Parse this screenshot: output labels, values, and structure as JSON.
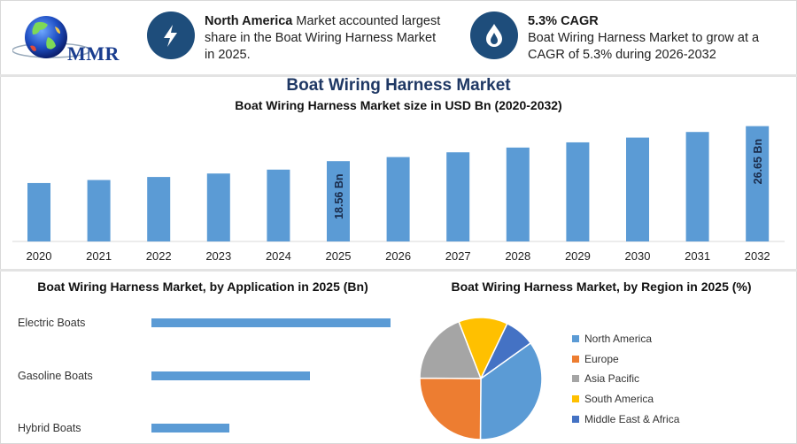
{
  "logo": {
    "text": "MMR"
  },
  "header": {
    "info1": {
      "bold": "North America",
      "text": " Market accounted largest share in the Boat Wiring Harness Market in 2025.",
      "icon": "lightning-bolt-icon"
    },
    "info2": {
      "bold": "5.3% CAGR",
      "text": "Boat Wiring Harness Market to grow at a CAGR of 5.3% during 2026-2032",
      "icon": "flame-drop-icon"
    }
  },
  "colors": {
    "bar": "#5b9bd5",
    "icon_circle": "#1e4d7b",
    "title": "#1f3864"
  },
  "main_title": "Boat Wiring Harness Market",
  "chart_data": [
    {
      "type": "bar",
      "title": "Boat Wiring Harness Market size in USD Bn (2020-2032)",
      "categories": [
        "2020",
        "2021",
        "2022",
        "2023",
        "2024",
        "2025",
        "2026",
        "2027",
        "2028",
        "2029",
        "2030",
        "2031",
        "2032"
      ],
      "values": [
        13.5,
        14.2,
        14.9,
        15.7,
        16.6,
        18.56,
        19.5,
        20.6,
        21.7,
        22.9,
        24.0,
        25.3,
        26.65
      ],
      "data_labels": [
        {
          "category": "2025",
          "text": "18.56 Bn"
        },
        {
          "category": "2032",
          "text": "26.65 Bn"
        }
      ],
      "ylim": [
        0,
        28
      ],
      "grid": false,
      "legend": false
    },
    {
      "type": "bar",
      "orientation": "horizontal",
      "title": "Boat Wiring Harness Market, by Application in 2025 (Bn)",
      "categories": [
        "Electric Boats",
        "Gasoline Boats",
        "Hybrid Boats"
      ],
      "values": [
        9.2,
        6.1,
        3.0
      ],
      "grid": false
    },
    {
      "type": "pie",
      "title": "Boat Wiring Harness Market, by Region in 2025 (%)",
      "labels": [
        "North America",
        "Europe",
        "Asia Pacific",
        "South America",
        "Middle East & Africa"
      ],
      "values": [
        35,
        25,
        19,
        13,
        8
      ],
      "colors": [
        "#5b9bd5",
        "#ed7d31",
        "#a5a5a5",
        "#ffc000",
        "#4472c4"
      ],
      "legend": "right"
    }
  ]
}
